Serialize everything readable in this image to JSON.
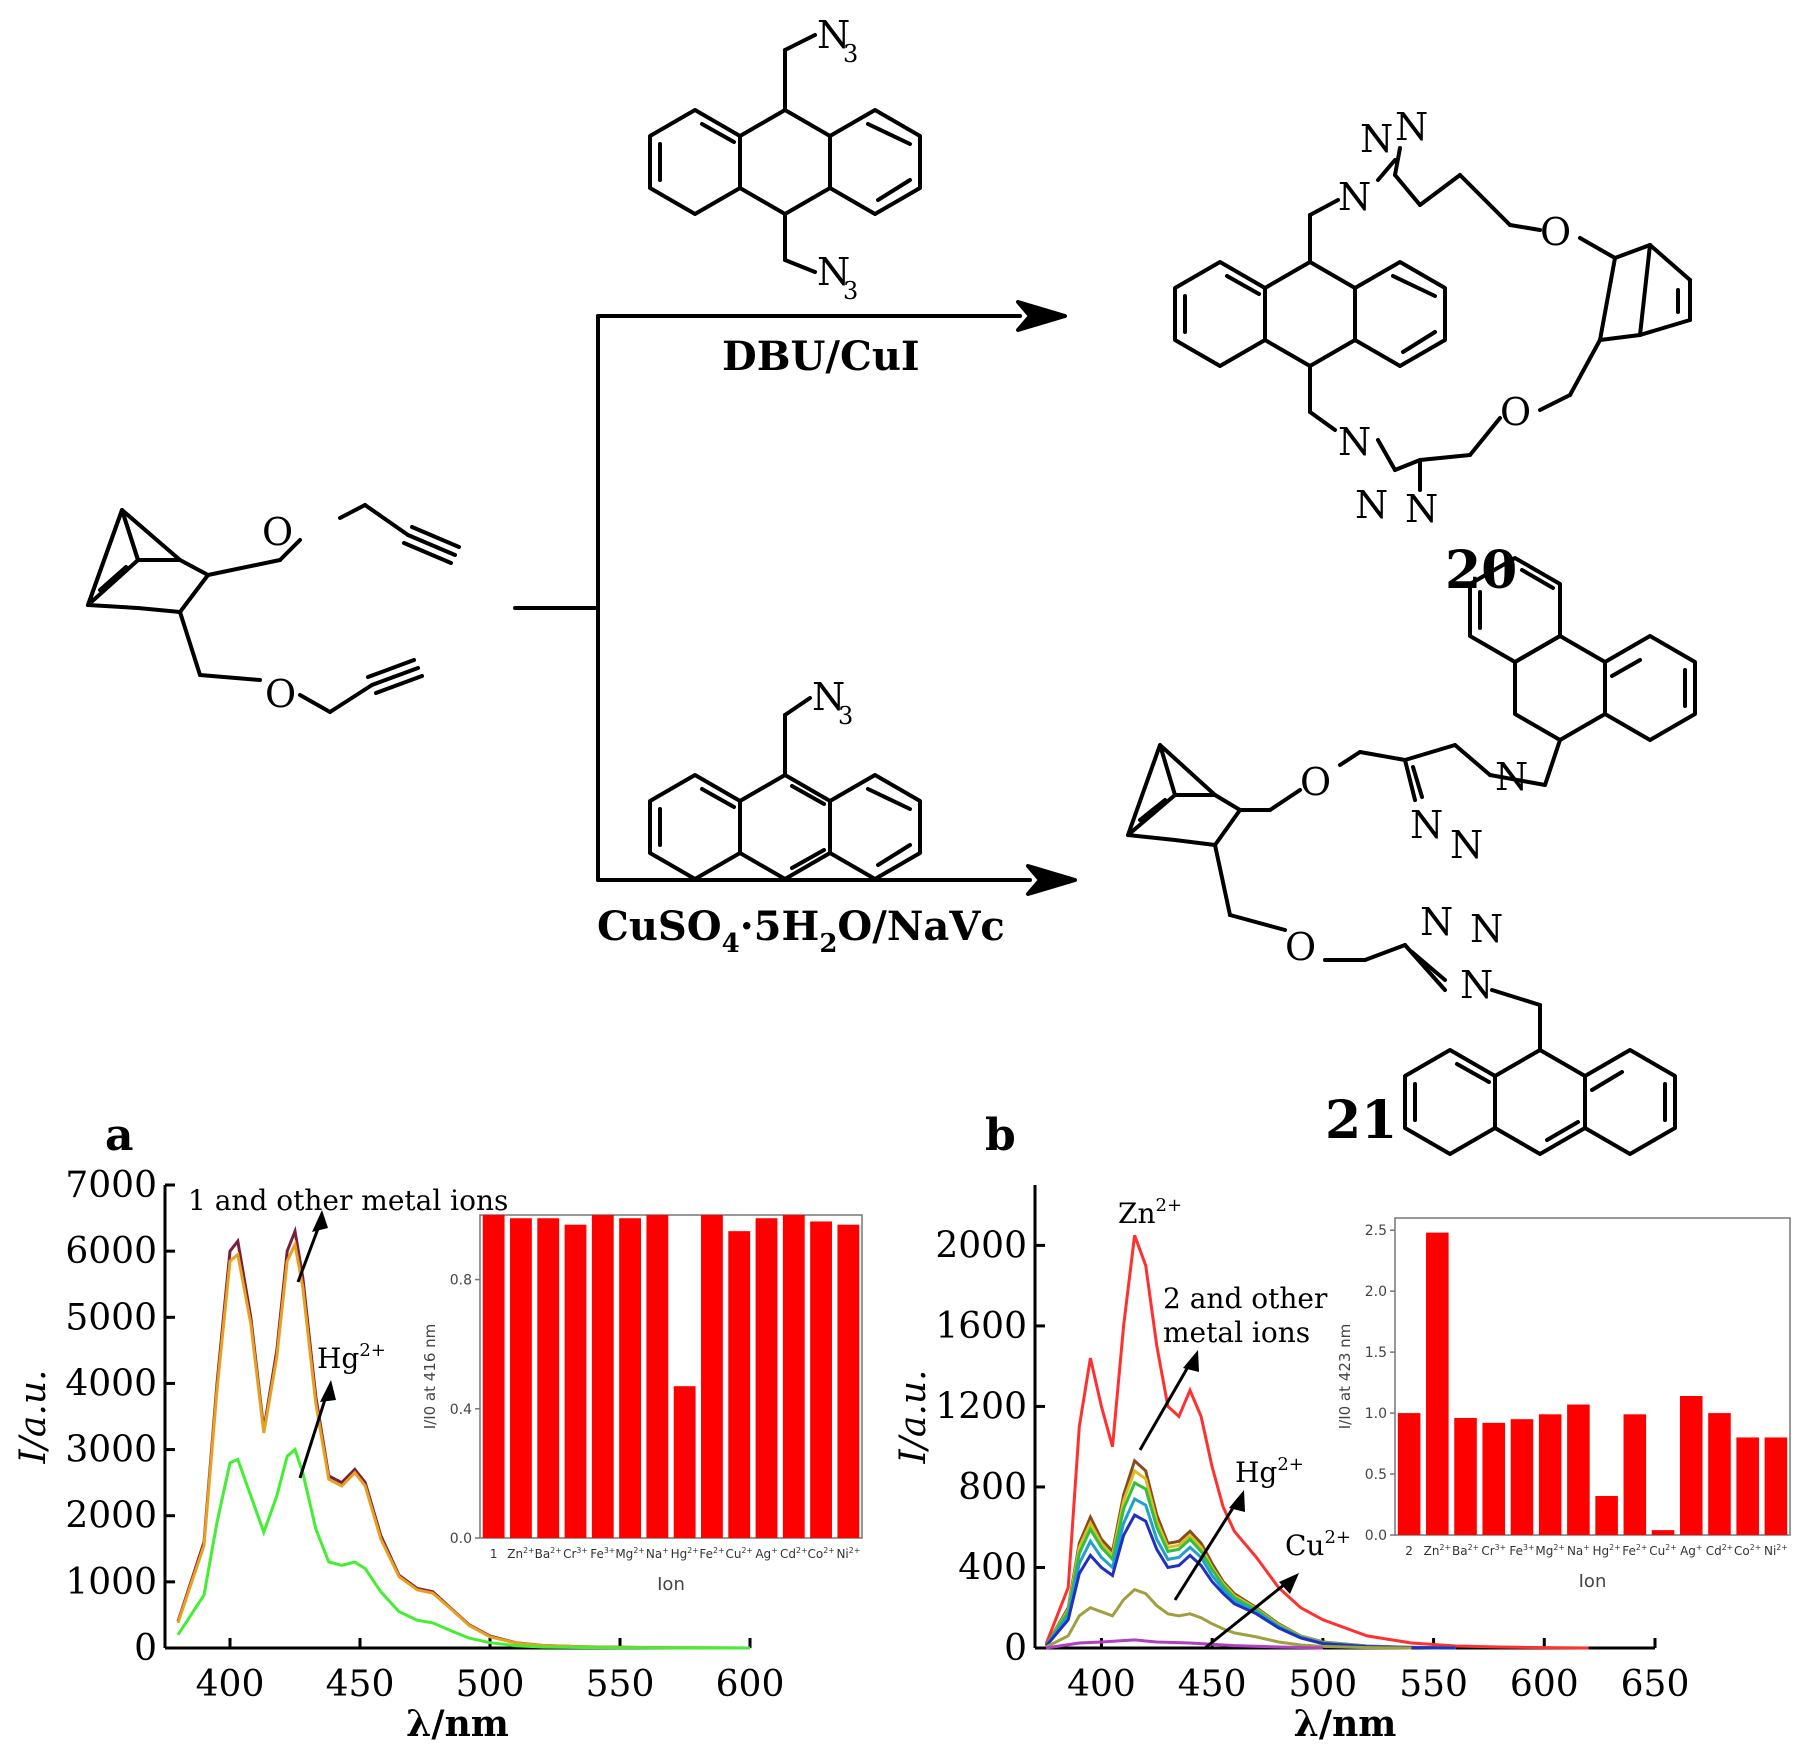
{
  "scheme": {
    "reagent_top": "DBU/CuI",
    "reagent_bottom_main": "CuSO",
    "reagent_bottom_sub4": "4",
    "reagent_bottom_mid": "·5H",
    "reagent_bottom_sub2": "2",
    "reagent_bottom_end": "O/NaVc",
    "compound_20": "20",
    "compound_21": "21",
    "atoms": {
      "N": "N",
      "O": "O",
      "N3": "N",
      "sub3": "3"
    }
  },
  "chart_data": [
    {
      "type": "line",
      "panel_label": "a",
      "xlabel": "λ/nm",
      "ylabel": "I/a.u.",
      "xlim": [
        375,
        600
      ],
      "ylim": [
        0,
        7000
      ],
      "x_ticks": [
        400,
        450,
        500,
        550,
        600
      ],
      "y_ticks": [
        0,
        1000,
        2000,
        3000,
        4000,
        5000,
        6000,
        7000
      ],
      "annotations": [
        "1 and other metal ions",
        "Hg2+"
      ],
      "series": [
        {
          "color": "#7a1f3a",
          "x": [
            380,
            390,
            395,
            400,
            403,
            408,
            413,
            418,
            422,
            425,
            428,
            433,
            438,
            443,
            448,
            452,
            458,
            465,
            472,
            478,
            485,
            492,
            500,
            510,
            520,
            535,
            550,
            570,
            600
          ],
          "y": [
            400,
            1600,
            4000,
            6000,
            6150,
            5000,
            3300,
            4500,
            6000,
            6300,
            5600,
            3800,
            2600,
            2500,
            2700,
            2500,
            1700,
            1100,
            900,
            850,
            600,
            350,
            180,
            80,
            40,
            20,
            10,
            5,
            0
          ]
        },
        {
          "color": "#e8a020",
          "x": [
            380,
            390,
            395,
            400,
            403,
            408,
            413,
            418,
            422,
            425,
            428,
            433,
            438,
            443,
            448,
            452,
            458,
            465,
            472,
            478,
            485,
            492,
            500,
            510,
            520,
            535,
            550,
            570,
            600
          ],
          "y": [
            380,
            1550,
            3900,
            5850,
            5950,
            4900,
            3250,
            4400,
            5850,
            6100,
            5450,
            3700,
            2550,
            2450,
            2650,
            2450,
            1650,
            1080,
            880,
            830,
            590,
            340,
            170,
            75,
            38,
            18,
            9,
            4,
            0
          ]
        },
        {
          "color": "#44ee33",
          "x": [
            380,
            390,
            395,
            400,
            403,
            408,
            413,
            418,
            422,
            425,
            428,
            433,
            438,
            443,
            448,
            452,
            458,
            465,
            472,
            478,
            485,
            492,
            500,
            510,
            520,
            535,
            550,
            570,
            600
          ],
          "y": [
            200,
            800,
            1900,
            2800,
            2850,
            2300,
            1750,
            2300,
            2900,
            3000,
            2650,
            1800,
            1300,
            1250,
            1300,
            1200,
            850,
            550,
            420,
            380,
            260,
            150,
            80,
            35,
            15,
            8,
            4,
            2,
            0
          ]
        }
      ],
      "inset": {
        "type": "bar",
        "ylabel": "I/I0 at 416 nm",
        "xlabel": "Ion",
        "ylim": [
          0,
          1.0
        ],
        "y_ticks": [
          "0.0",
          "0.4",
          "0.8"
        ],
        "categories": [
          "1",
          "Zn2+",
          "Ba2+",
          "Cr3+",
          "Fe3+",
          "Mg2+",
          "Na+",
          "Hg2+",
          "Fe2+",
          "Cu2+",
          "Ag+",
          "Cd2+",
          "Co2+",
          "Ni2+"
        ],
        "values": [
          1.0,
          0.99,
          0.99,
          0.97,
          1.0,
          0.99,
          1.01,
          0.47,
          1.0,
          0.95,
          0.99,
          1.0,
          0.98,
          0.97
        ],
        "color": "#ff0000"
      }
    },
    {
      "type": "line",
      "panel_label": "b",
      "xlabel": "λ/nm",
      "ylabel": "I/a.u.",
      "xlim": [
        370,
        650
      ],
      "ylim": [
        0,
        2300
      ],
      "x_ticks": [
        400,
        450,
        500,
        550,
        600,
        650
      ],
      "y_ticks": [
        0,
        400,
        800,
        1200,
        1600,
        2000
      ],
      "annotations": [
        "Zn2+",
        "2 and other",
        "metal ions",
        "Hg2+",
        "Cu2+"
      ],
      "series": [
        {
          "color": "#ff3030",
          "x": [
            375,
            385,
            390,
            395,
            400,
            405,
            410,
            415,
            420,
            425,
            430,
            435,
            440,
            445,
            450,
            455,
            460,
            470,
            480,
            490,
            500,
            520,
            540,
            560,
            580,
            600,
            620
          ],
          "y": [
            20,
            300,
            1100,
            1440,
            1200,
            1000,
            1600,
            2050,
            1900,
            1500,
            1200,
            1150,
            1280,
            1150,
            900,
            700,
            580,
            450,
            300,
            200,
            140,
            60,
            25,
            10,
            5,
            2,
            0
          ]
        },
        {
          "color": "#8a4a20",
          "x": [
            375,
            385,
            390,
            395,
            400,
            405,
            410,
            415,
            420,
            425,
            430,
            435,
            440,
            445,
            450,
            455,
            460,
            470,
            480,
            490,
            500,
            520,
            540,
            560
          ],
          "y": [
            10,
            200,
            520,
            650,
            540,
            480,
            760,
            930,
            880,
            660,
            520,
            530,
            580,
            520,
            420,
            330,
            270,
            200,
            120,
            60,
            30,
            10,
            3,
            0
          ]
        },
        {
          "color": "#d8c020",
          "x": [
            375,
            385,
            390,
            395,
            400,
            405,
            410,
            415,
            420,
            425,
            430,
            435,
            440,
            445,
            450,
            455,
            460,
            470,
            480,
            490,
            500,
            520,
            540,
            560
          ],
          "y": [
            10,
            190,
            500,
            620,
            520,
            460,
            730,
            880,
            840,
            630,
            500,
            510,
            560,
            500,
            400,
            320,
            260,
            195,
            115,
            58,
            28,
            9,
            3,
            0
          ]
        },
        {
          "color": "#30c040",
          "x": [
            375,
            385,
            390,
            395,
            400,
            405,
            410,
            415,
            420,
            425,
            430,
            435,
            440,
            445,
            450,
            455,
            460,
            470,
            480,
            490,
            500,
            520,
            540,
            560
          ],
          "y": [
            10,
            180,
            470,
            590,
            500,
            440,
            690,
            820,
            790,
            600,
            480,
            490,
            540,
            480,
            390,
            310,
            250,
            190,
            110,
            55,
            26,
            8,
            3,
            0
          ]
        },
        {
          "color": "#20a0d0",
          "x": [
            375,
            385,
            390,
            395,
            400,
            405,
            410,
            415,
            420,
            425,
            430,
            435,
            440,
            445,
            450,
            455,
            460,
            470,
            480,
            490,
            500,
            520,
            540,
            560
          ],
          "y": [
            10,
            160,
            420,
            530,
            450,
            400,
            620,
            740,
            710,
            540,
            440,
            450,
            500,
            450,
            360,
            290,
            235,
            180,
            105,
            52,
            24,
            8,
            3,
            0
          ]
        },
        {
          "color": "#2030c0",
          "x": [
            375,
            385,
            390,
            395,
            400,
            405,
            410,
            415,
            420,
            425,
            430,
            435,
            440,
            445,
            450,
            455,
            460,
            470,
            480,
            490,
            500,
            520,
            540,
            560
          ],
          "y": [
            10,
            140,
            370,
            460,
            400,
            360,
            560,
            660,
            630,
            490,
            400,
            410,
            460,
            410,
            330,
            270,
            220,
            170,
            100,
            50,
            22,
            7,
            2,
            0
          ]
        },
        {
          "color": "#a0a040",
          "x": [
            375,
            385,
            390,
            395,
            400,
            405,
            410,
            415,
            420,
            425,
            430,
            435,
            440,
            445,
            450,
            455,
            460,
            470,
            480,
            490,
            500,
            520,
            540
          ],
          "y": [
            5,
            60,
            160,
            200,
            180,
            160,
            240,
            290,
            270,
            210,
            170,
            160,
            170,
            150,
            120,
            95,
            75,
            55,
            30,
            15,
            8,
            2,
            0
          ]
        },
        {
          "color": "#b040c0",
          "x": [
            375,
            390,
            400,
            415,
            425,
            440,
            460,
            480,
            500
          ],
          "y": [
            0,
            25,
            30,
            40,
            30,
            25,
            12,
            5,
            0
          ]
        }
      ],
      "inset": {
        "type": "bar",
        "ylabel": "I/I0 at 423 nm",
        "xlabel": "Ion",
        "ylim": [
          0,
          2.6
        ],
        "y_ticks": [
          "0.0",
          "0.5",
          "1.0",
          "1.5",
          "2.0",
          "2.5"
        ],
        "categories": [
          "2",
          "Zn2+",
          "Ba2+",
          "Cr3+",
          "Fe3+",
          "Mg2+",
          "Na+",
          "Hg2+",
          "Fe2+",
          "Cu2+",
          "Ag+",
          "Cd2+",
          "Co2+",
          "Ni2+"
        ],
        "values": [
          1.0,
          2.48,
          0.96,
          0.92,
          0.95,
          0.99,
          1.07,
          0.32,
          0.99,
          0.04,
          1.14,
          1.0,
          0.8,
          0.8
        ],
        "color": "#ff0000"
      }
    }
  ]
}
